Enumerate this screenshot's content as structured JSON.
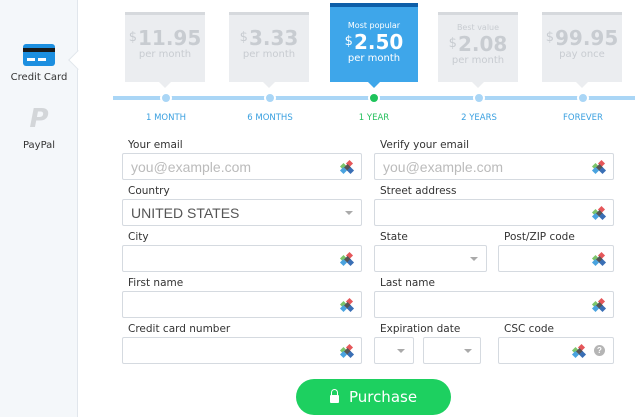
{
  "sidebar": {
    "items": [
      {
        "label": "Credit Card",
        "icon": "credit-card-icon",
        "active": true
      },
      {
        "label": "PayPal",
        "icon": "paypal-icon",
        "active": false
      }
    ]
  },
  "plans": [
    {
      "tag": "",
      "currency": "$",
      "price": "11.95",
      "period": "per month",
      "label": "1 MONTH",
      "selected": false
    },
    {
      "tag": "",
      "currency": "$",
      "price": "3.33",
      "period": "per month",
      "label": "6 MONTHS",
      "selected": false
    },
    {
      "tag": "Most popular",
      "currency": "$",
      "price": "2.50",
      "period": "per month",
      "label": "1 YEAR",
      "selected": true
    },
    {
      "tag": "Best value",
      "currency": "$",
      "price": "2.08",
      "period": "per month",
      "label": "2 YEARS",
      "selected": false
    },
    {
      "tag": "",
      "currency": "$",
      "price": "99.95",
      "period": "pay once",
      "label": "FOREVER",
      "selected": false
    }
  ],
  "form": {
    "email": {
      "label": "Your email",
      "placeholder": "you@example.com"
    },
    "verify_email": {
      "label": "Verify your email",
      "placeholder": "you@example.com"
    },
    "country": {
      "label": "Country",
      "value": "UNITED STATES"
    },
    "street": {
      "label": "Street address"
    },
    "city": {
      "label": "City"
    },
    "state": {
      "label": "State"
    },
    "zip": {
      "label": "Post/ZIP code"
    },
    "first_name": {
      "label": "First name"
    },
    "last_name": {
      "label": "Last name"
    },
    "card_number": {
      "label": "Credit card number"
    },
    "expiration": {
      "label": "Expiration date"
    },
    "csc": {
      "label": "CSC code",
      "help": "?"
    }
  },
  "purchase_label": "Purchase",
  "colors": {
    "accent": "#3ea6ea",
    "selected": "#1ec35b",
    "button": "#1dd060"
  }
}
